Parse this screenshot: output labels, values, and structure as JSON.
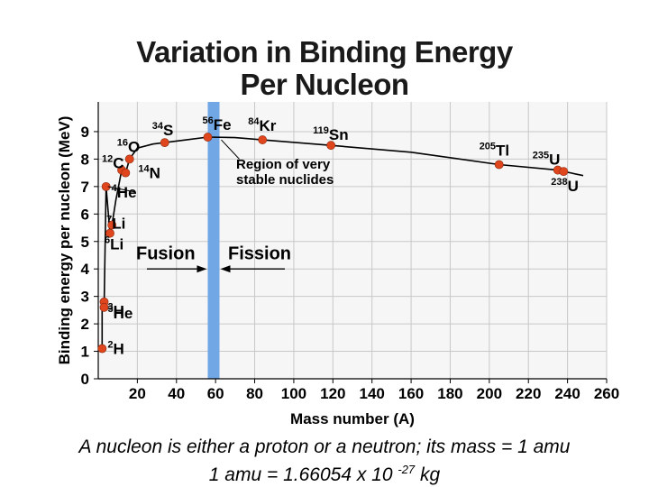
{
  "title_line1": "Variation in Binding Energy",
  "title_line2": "Per Nucleon",
  "chart_data": {
    "type": "scatter",
    "xlabel": "Mass number (A)",
    "ylabel": "Binding energy per nucleon (MeV)",
    "xlim": [
      0,
      260
    ],
    "ylim": [
      0,
      10
    ],
    "xticks": [
      20,
      40,
      60,
      80,
      100,
      120,
      140,
      160,
      180,
      200,
      220,
      240,
      260
    ],
    "yticks": [
      0,
      1,
      2,
      3,
      4,
      5,
      6,
      7,
      8,
      9
    ],
    "grid": true,
    "points": [
      {
        "name": "2H",
        "mass": "2",
        "symbol": "H",
        "x": 2,
        "y": 1.1
      },
      {
        "name": "3H",
        "mass": "3",
        "symbol": "H",
        "x": 3,
        "y": 2.8
      },
      {
        "name": "3He",
        "mass": "3",
        "symbol": "He",
        "x": 3,
        "y": 2.6
      },
      {
        "name": "4He",
        "mass": "4",
        "symbol": "He",
        "x": 4,
        "y": 7.0
      },
      {
        "name": "6Li",
        "mass": "6",
        "symbol": "Li",
        "x": 6,
        "y": 5.3
      },
      {
        "name": "7Li",
        "mass": "7",
        "symbol": "Li",
        "x": 7,
        "y": 5.6
      },
      {
        "name": "12C",
        "mass": "12",
        "symbol": "C",
        "x": 12,
        "y": 7.6
      },
      {
        "name": "14N",
        "mass": "14",
        "symbol": "N",
        "x": 14,
        "y": 7.5
      },
      {
        "name": "16O",
        "mass": "16",
        "symbol": "O",
        "x": 16,
        "y": 8.0
      },
      {
        "name": "34S",
        "mass": "34",
        "symbol": "S",
        "x": 34,
        "y": 8.6
      },
      {
        "name": "56Fe",
        "mass": "56",
        "symbol": "Fe",
        "x": 56,
        "y": 8.8
      },
      {
        "name": "84Kr",
        "mass": "84",
        "symbol": "Kr",
        "x": 84,
        "y": 8.7
      },
      {
        "name": "119Sn",
        "mass": "119",
        "symbol": "Sn",
        "x": 119,
        "y": 8.5
      },
      {
        "name": "205Tl",
        "mass": "205",
        "symbol": "Tl",
        "x": 205,
        "y": 7.8
      },
      {
        "name": "235U",
        "mass": "235",
        "symbol": "U",
        "x": 235,
        "y": 7.6
      },
      {
        "name": "238U",
        "mass": "238",
        "symbol": "U",
        "x": 238,
        "y": 7.55
      }
    ],
    "curve": [
      [
        1,
        1.1
      ],
      [
        2,
        1.1
      ],
      [
        2,
        2.8
      ],
      [
        3,
        2.8
      ],
      [
        3,
        2.6
      ],
      [
        4,
        7.0
      ],
      [
        6,
        5.3
      ],
      [
        7,
        5.6
      ],
      [
        9,
        6.5
      ],
      [
        12,
        7.6
      ],
      [
        13,
        7.4
      ],
      [
        14,
        7.5
      ],
      [
        16,
        8.0
      ],
      [
        20,
        8.4
      ],
      [
        28,
        8.55
      ],
      [
        34,
        8.6
      ],
      [
        45,
        8.7
      ],
      [
        56,
        8.8
      ],
      [
        70,
        8.78
      ],
      [
        84,
        8.7
      ],
      [
        119,
        8.5
      ],
      [
        160,
        8.25
      ],
      [
        205,
        7.8
      ],
      [
        235,
        7.6
      ],
      [
        238,
        7.55
      ],
      [
        248,
        7.4
      ]
    ],
    "stable_band": {
      "x": [
        56,
        62
      ],
      "label_line1": "Region of very",
      "label_line2": "stable nuclides",
      "color": "#72a7e6"
    },
    "fusion_label": "Fusion",
    "fission_label": "Fission",
    "point_color": "#e0461e",
    "grid_color": "#c8c8c8",
    "plot_background": "#f6f6f6"
  },
  "caption_line1": "A nucleon is either a proton or a neutron; its mass = 1 amu",
  "caption_line2_prefix": "1 amu = 1.66054 x 10 ",
  "caption_line2_exponent": "-27",
  "caption_line2_suffix": " kg"
}
